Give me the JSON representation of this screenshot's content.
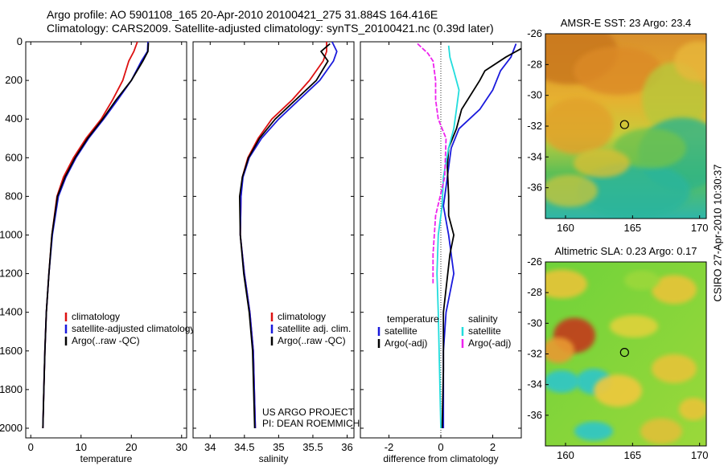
{
  "title_line1": "Argo profile: AO 5901108_165 20-Apr-2010 20100421_275 31.884S 164.416E",
  "title_line2": "Climatology: CARS2009. Satellite-adjusted climatology: synTS_20100421.nc (0.39d later)",
  "credit": "CSIRO 27-Apr-2010 10:30:37",
  "project_line1": "US ARGO PROJECT",
  "project_line2": "PI: DEAN ROEMMICH",
  "colors": {
    "climatology": "#dd1111",
    "satellite": "#1a1adc",
    "argo": "#000000",
    "sal_satellite": "#22dddd",
    "sal_argo": "#ee22ee"
  },
  "chart_data": [
    {
      "type": "line",
      "xlabel": "temperature",
      "xlim": [
        -1,
        31
      ],
      "xticks": [
        0,
        10,
        20,
        30
      ],
      "ylim": [
        2050,
        0
      ],
      "yticks": [
        0,
        200,
        400,
        600,
        800,
        1000,
        1200,
        1400,
        1600,
        1800,
        2000
      ],
      "legend": {
        "entries": [
          "climatology",
          "satellite-adjusted climatology",
          "Argo(..raw -QC)"
        ],
        "placement": "lower-right"
      },
      "series": [
        {
          "name": "climatology",
          "x": [
            21.2,
            20.5,
            19.5,
            18.3,
            16.3,
            14.0,
            11.0,
            8.5,
            6.5,
            5.2,
            4.2,
            3.6,
            3.1,
            2.8,
            2.6,
            2.45,
            2.4
          ],
          "y": [
            0,
            50,
            100,
            200,
            300,
            400,
            500,
            600,
            700,
            800,
            1000,
            1200,
            1400,
            1600,
            1800,
            1950,
            2000
          ]
        },
        {
          "name": "satellite-adjusted climatology",
          "x": [
            23.3,
            23.2,
            22.0,
            20.0,
            17.3,
            14.5,
            11.5,
            9.0,
            7.0,
            5.5,
            4.3,
            3.6,
            3.1,
            2.8,
            2.6,
            2.45,
            2.4
          ],
          "y": [
            0,
            50,
            100,
            200,
            300,
            400,
            500,
            600,
            700,
            800,
            1000,
            1200,
            1400,
            1600,
            1800,
            1950,
            2000
          ]
        },
        {
          "name": "Argo(..raw -QC)",
          "x": [
            23.4,
            23.3,
            22.3,
            20.0,
            17.0,
            14.3,
            11.3,
            8.8,
            6.8,
            5.3,
            4.2,
            3.6,
            3.1,
            2.8,
            2.6,
            2.45,
            2.4
          ],
          "y": [
            5,
            50,
            100,
            200,
            300,
            400,
            500,
            600,
            700,
            800,
            1000,
            1200,
            1400,
            1600,
            1800,
            1950,
            2000
          ]
        }
      ]
    },
    {
      "type": "line",
      "xlabel": "salinity",
      "xlim": [
        33.75,
        36.1
      ],
      "xticks": [
        34,
        34.5,
        35,
        35.5,
        36
      ],
      "ylim": [
        2050,
        0
      ],
      "legend": {
        "entries": [
          "climatology",
          "satellite adj. clim.",
          "Argo(..raw -QC)"
        ],
        "placement": "lower-right"
      },
      "series": [
        {
          "name": "climatology",
          "x": [
            35.7,
            35.7,
            35.65,
            35.45,
            35.2,
            34.9,
            34.7,
            34.55,
            34.47,
            34.45,
            34.44,
            34.5,
            34.58,
            34.63,
            34.66
          ],
          "y": [
            0,
            50,
            100,
            200,
            300,
            400,
            500,
            600,
            700,
            800,
            1000,
            1200,
            1400,
            1600,
            2000
          ]
        },
        {
          "name": "satellite adj. clim.",
          "x": [
            35.78,
            35.85,
            35.8,
            35.6,
            35.3,
            35.0,
            34.75,
            34.57,
            34.48,
            34.45,
            34.44,
            34.5,
            34.58,
            34.63,
            34.66
          ],
          "y": [
            0,
            50,
            100,
            200,
            300,
            400,
            500,
            600,
            700,
            800,
            1000,
            1200,
            1400,
            1600,
            2000
          ]
        },
        {
          "name": "Argo(..raw -QC)",
          "x": [
            35.75,
            35.62,
            35.72,
            35.55,
            35.25,
            34.95,
            34.72,
            34.56,
            34.47,
            34.43,
            34.44,
            34.49,
            34.57,
            34.62,
            34.65
          ],
          "y": [
            10,
            50,
            100,
            200,
            300,
            400,
            500,
            600,
            700,
            800,
            1000,
            1200,
            1400,
            1600,
            2000
          ]
        }
      ]
    },
    {
      "type": "line",
      "xlabel": "difference from climatology",
      "xlim": [
        -3.1,
        3.1
      ],
      "xticks": [
        -2,
        0,
        2
      ],
      "ylim": [
        2050,
        0
      ],
      "legend": {
        "groups": [
          "temperature",
          "salinity"
        ],
        "entries": [
          "satellite",
          "Argo(-adj)",
          "satellite",
          "Argo(-adj)"
        ],
        "placement": "lower-middle"
      },
      "series": [
        {
          "name": "temperature satellite",
          "x": [
            2.9,
            2.7,
            2.3,
            2.0,
            1.5,
            0.7,
            0.4,
            0.3,
            0.2,
            0.1,
            0.3,
            0.5,
            0.2,
            0.1,
            0.1,
            0.1
          ],
          "y": [
            10,
            80,
            150,
            250,
            350,
            450,
            550,
            650,
            750,
            850,
            1000,
            1200,
            1400,
            1600,
            1800,
            2000
          ]
        },
        {
          "name": "temperature Argo(-adj)",
          "x": [
            3.3,
            2.5,
            1.7,
            1.5,
            0.8,
            0.6,
            0.3,
            0.25,
            0.3,
            0.3,
            0.5,
            0.35,
            0.1,
            0.1,
            0.05
          ],
          "y": [
            20,
            80,
            150,
            200,
            350,
            450,
            550,
            650,
            800,
            900,
            1000,
            1100,
            1400,
            1700,
            2000
          ]
        },
        {
          "name": "salinity satellite",
          "x": [
            0.3,
            0.35,
            0.5,
            0.7,
            0.6,
            0.5,
            0.3,
            0.1,
            0.05,
            -0.1,
            -0.15,
            -0.1,
            -0.05,
            0.0
          ],
          "y": [
            20,
            80,
            150,
            250,
            350,
            450,
            550,
            700,
            850,
            1000,
            1200,
            1400,
            1700,
            2000
          ]
        },
        {
          "name": "salinity Argo(-adj)",
          "x": [
            -0.9,
            -0.5,
            -0.3,
            -0.2,
            -0.2,
            -0.1,
            0.2,
            0.15,
            -0.2,
            -0.3,
            -0.3
          ],
          "y": [
            10,
            60,
            100,
            200,
            300,
            400,
            500,
            700,
            900,
            1100,
            1250
          ]
        }
      ]
    },
    {
      "type": "heatmap",
      "title": "AMSR-E SST: 23 Argo: 23.4",
      "xlim": [
        158.5,
        170.5
      ],
      "ylim": [
        -38,
        -26
      ],
      "xticks": [
        160,
        165,
        170
      ],
      "yticks": [
        -26,
        -28,
        -30,
        -32,
        -34,
        -36
      ],
      "profile_marker": {
        "lon": 164.4,
        "lat": -31.9
      }
    },
    {
      "type": "heatmap",
      "title": "Altimetric SLA: 0.23 Argo: 0.17",
      "xlim": [
        158.5,
        170.5
      ],
      "ylim": [
        -38,
        -26
      ],
      "xticks": [
        160,
        165,
        170
      ],
      "yticks": [
        -26,
        -28,
        -30,
        -32,
        -34,
        -36
      ],
      "profile_marker": {
        "lon": 164.4,
        "lat": -31.9
      }
    }
  ]
}
